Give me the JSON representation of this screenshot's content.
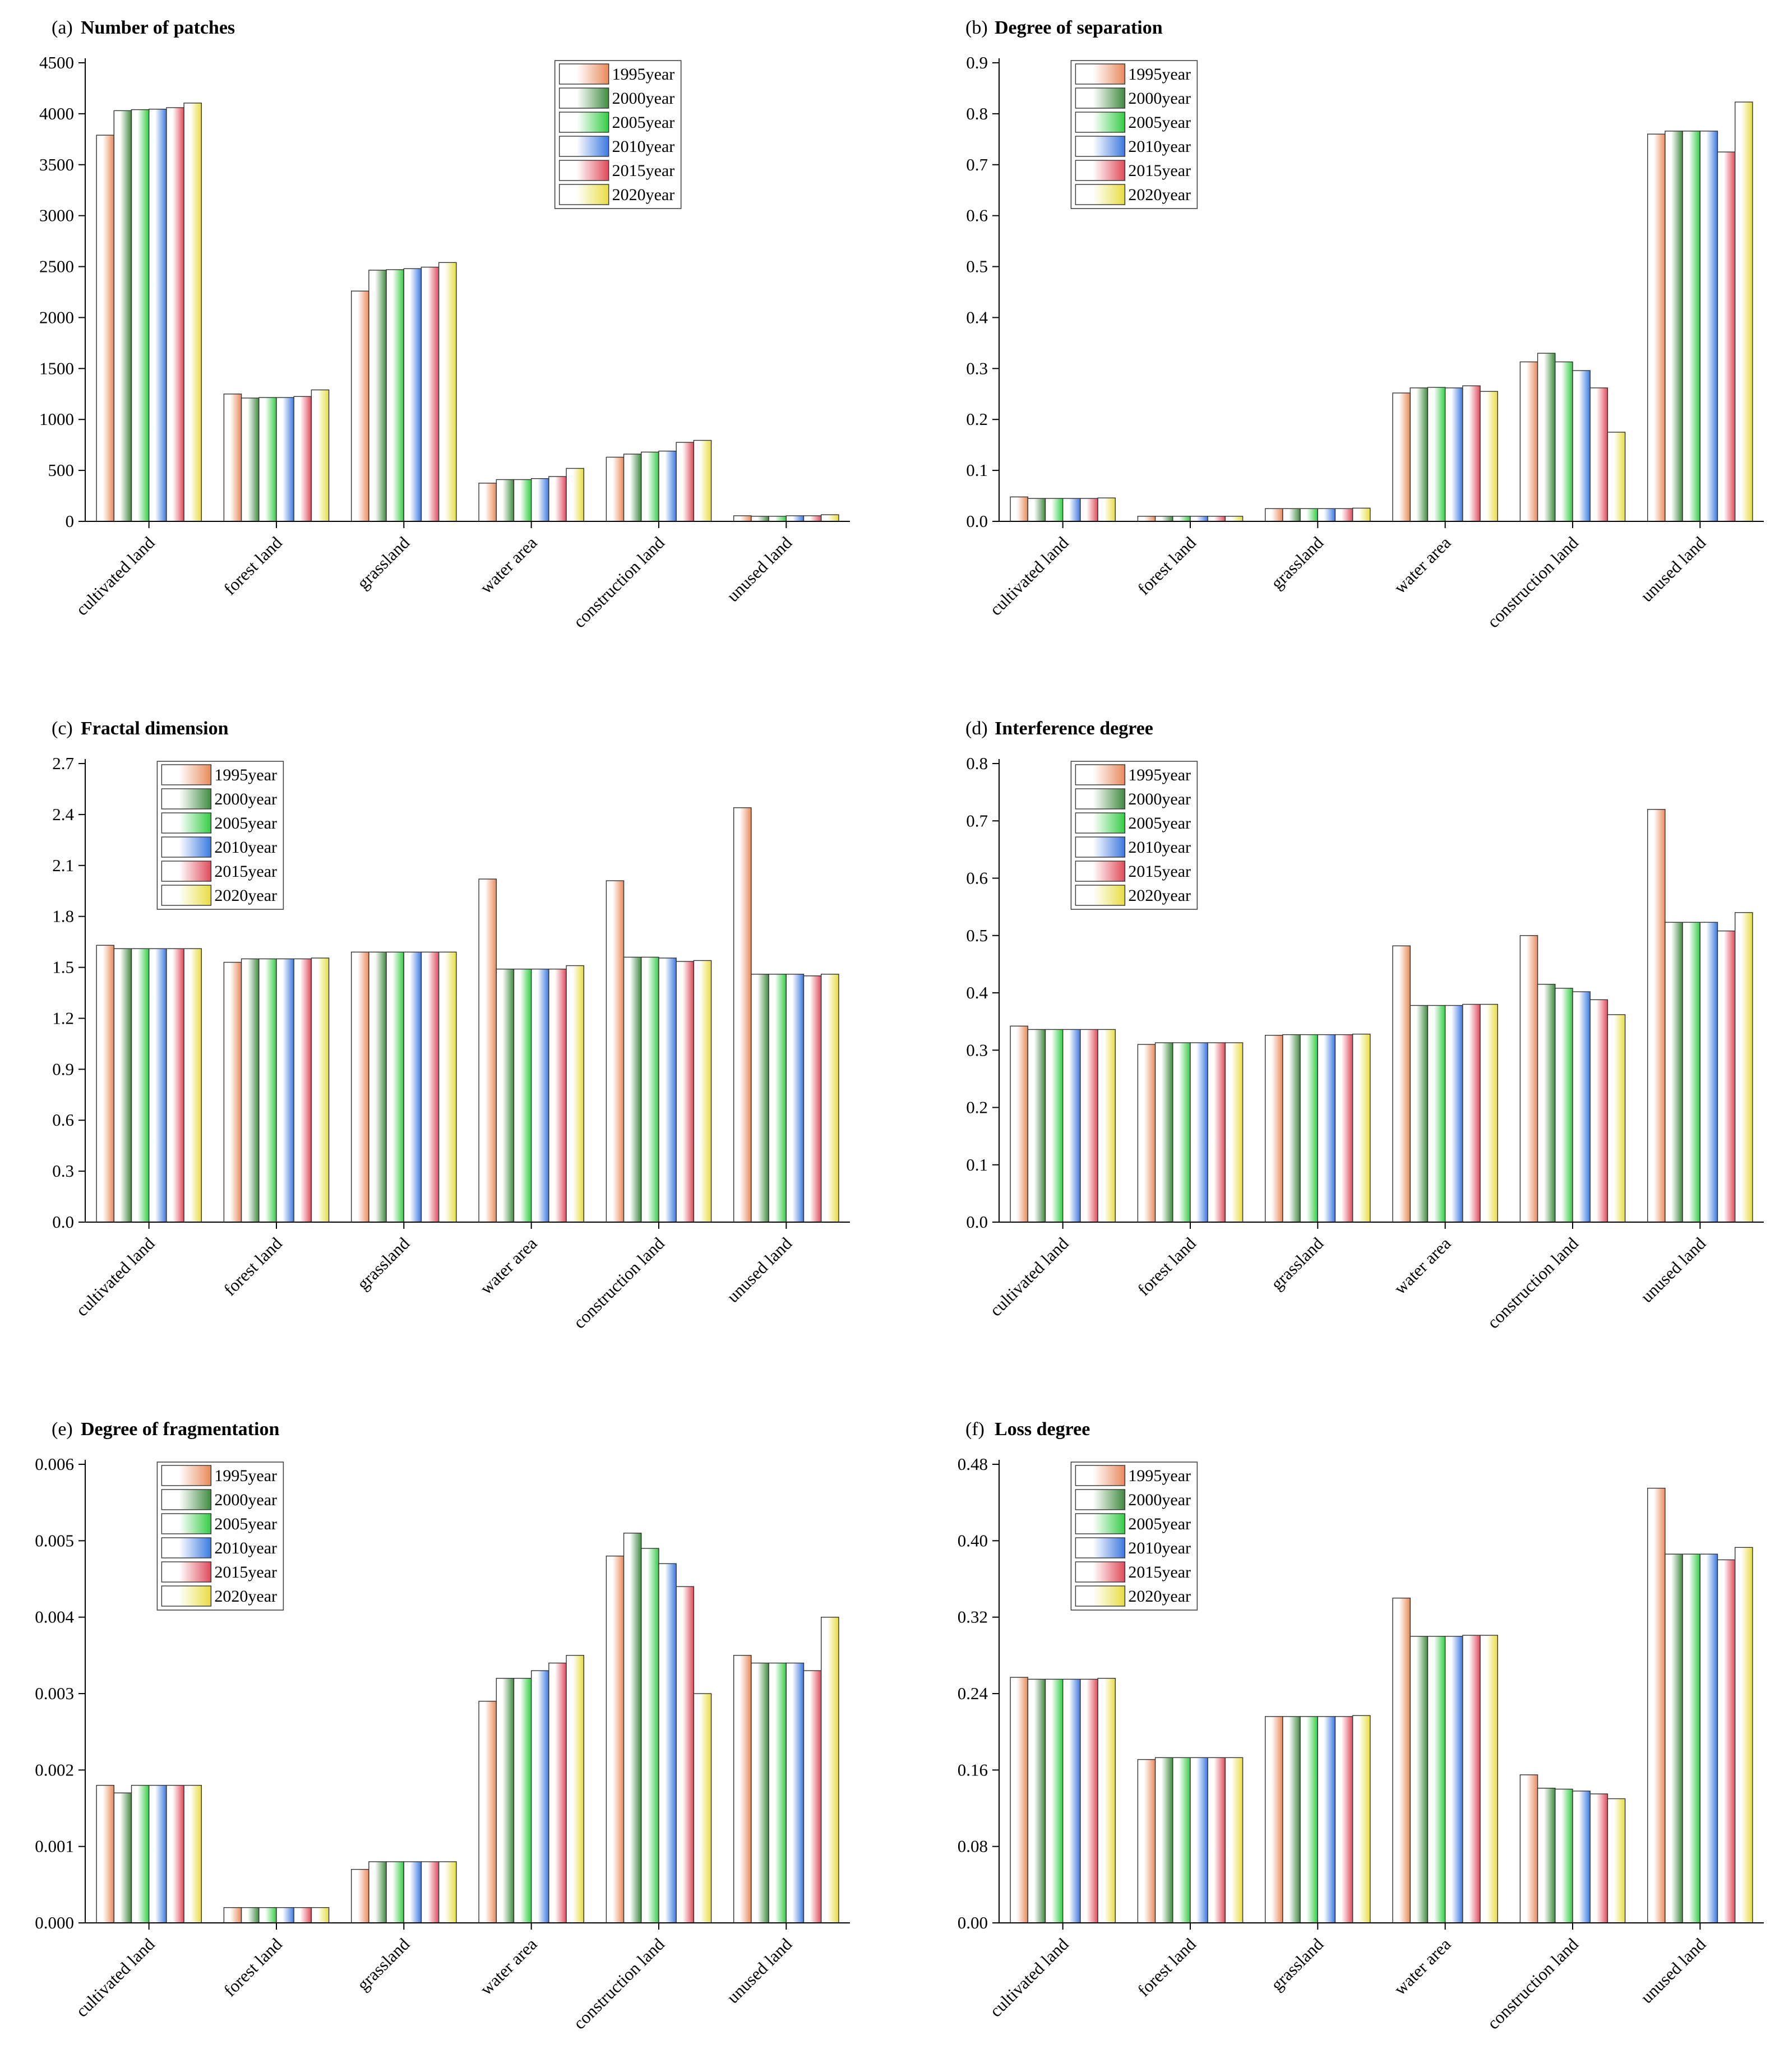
{
  "series_names": [
    "1995year",
    "2000year",
    "2005year",
    "2010year",
    "2015year",
    "2020year"
  ],
  "series_colors": [
    "#e8895a",
    "#3f8a3f",
    "#33cc44",
    "#3a78e0",
    "#e04a5a",
    "#e8dc40"
  ],
  "chart_data": [
    {
      "type": "bar",
      "letter": "(a)",
      "title": "Number of patches",
      "categories": [
        "cultivated land",
        "forest land",
        "grassland",
        "water area",
        "construction land",
        "unused land"
      ],
      "ylim": [
        0,
        4500
      ],
      "ticks": [
        "0",
        "500",
        "1000",
        "1500",
        "2000",
        "2500",
        "3000",
        "3500",
        "4000",
        "4500"
      ],
      "legend": "top-right",
      "series": [
        {
          "name": "1995year",
          "values": [
            3790,
            1250,
            2260,
            375,
            630,
            55
          ]
        },
        {
          "name": "2000year",
          "values": [
            4030,
            1210,
            2465,
            410,
            660,
            50
          ]
        },
        {
          "name": "2005year",
          "values": [
            4040,
            1215,
            2470,
            410,
            680,
            50
          ]
        },
        {
          "name": "2010year",
          "values": [
            4045,
            1215,
            2480,
            420,
            690,
            55
          ]
        },
        {
          "name": "2015year",
          "values": [
            4060,
            1225,
            2495,
            440,
            775,
            55
          ]
        },
        {
          "name": "2020year",
          "values": [
            4105,
            1290,
            2540,
            520,
            795,
            65
          ]
        }
      ]
    },
    {
      "type": "bar",
      "letter": "(b)",
      "title": "Degree of separation",
      "categories": [
        "cultivated land",
        "forest land",
        "grassland",
        "water area",
        "construction land",
        "unused land"
      ],
      "ylim": [
        0,
        0.9
      ],
      "ticks": [
        "0.0",
        "0.1",
        "0.2",
        "0.3",
        "0.4",
        "0.5",
        "0.6",
        "0.7",
        "0.8",
        "0.9"
      ],
      "legend": "top-left",
      "series": [
        {
          "name": "1995year",
          "values": [
            0.048,
            0.01,
            0.025,
            0.252,
            0.313,
            0.76
          ]
        },
        {
          "name": "2000year",
          "values": [
            0.045,
            0.01,
            0.025,
            0.262,
            0.33,
            0.766
          ]
        },
        {
          "name": "2005year",
          "values": [
            0.045,
            0.01,
            0.025,
            0.263,
            0.313,
            0.766
          ]
        },
        {
          "name": "2010year",
          "values": [
            0.045,
            0.01,
            0.025,
            0.262,
            0.296,
            0.766
          ]
        },
        {
          "name": "2015year",
          "values": [
            0.045,
            0.01,
            0.025,
            0.266,
            0.262,
            0.725
          ]
        },
        {
          "name": "2020year",
          "values": [
            0.046,
            0.01,
            0.026,
            0.255,
            0.175,
            0.823
          ]
        }
      ]
    },
    {
      "type": "bar",
      "letter": "(c)",
      "title": "Fractal dimension",
      "categories": [
        "cultivated land",
        "forest land",
        "grassland",
        "water area",
        "construction land",
        "unused land"
      ],
      "ylim": [
        0,
        2.7
      ],
      "ticks": [
        "0.0",
        "0.3",
        "0.6",
        "0.9",
        "1.2",
        "1.5",
        "1.8",
        "2.1",
        "2.4",
        "2.7"
      ],
      "legend": "top-left",
      "series": [
        {
          "name": "1995year",
          "values": [
            1.63,
            1.53,
            1.59,
            2.02,
            2.01,
            2.44
          ]
        },
        {
          "name": "2000year",
          "values": [
            1.61,
            1.55,
            1.59,
            1.49,
            1.56,
            1.46
          ]
        },
        {
          "name": "2005year",
          "values": [
            1.61,
            1.55,
            1.59,
            1.49,
            1.56,
            1.46
          ]
        },
        {
          "name": "2010year",
          "values": [
            1.61,
            1.55,
            1.59,
            1.49,
            1.555,
            1.46
          ]
        },
        {
          "name": "2015year",
          "values": [
            1.61,
            1.55,
            1.59,
            1.49,
            1.535,
            1.45
          ]
        },
        {
          "name": "2020year",
          "values": [
            1.61,
            1.555,
            1.59,
            1.51,
            1.54,
            1.46
          ]
        }
      ]
    },
    {
      "type": "bar",
      "letter": "(d)",
      "title": "Interference degree",
      "categories": [
        "cultivated land",
        "forest land",
        "grassland",
        "water area",
        "construction land",
        "unused land"
      ],
      "ylim": [
        0,
        0.8
      ],
      "ticks": [
        "0.0",
        "0.1",
        "0.2",
        "0.3",
        "0.4",
        "0.5",
        "0.6",
        "0.7",
        "0.8"
      ],
      "legend": "top-left",
      "series": [
        {
          "name": "1995year",
          "values": [
            0.342,
            0.31,
            0.326,
            0.482,
            0.5,
            0.72
          ]
        },
        {
          "name": "2000year",
          "values": [
            0.336,
            0.313,
            0.327,
            0.378,
            0.415,
            0.523
          ]
        },
        {
          "name": "2005year",
          "values": [
            0.336,
            0.313,
            0.327,
            0.378,
            0.408,
            0.523
          ]
        },
        {
          "name": "2010year",
          "values": [
            0.336,
            0.313,
            0.327,
            0.378,
            0.402,
            0.523
          ]
        },
        {
          "name": "2015year",
          "values": [
            0.336,
            0.313,
            0.327,
            0.38,
            0.388,
            0.508
          ]
        },
        {
          "name": "2020year",
          "values": [
            0.336,
            0.313,
            0.328,
            0.38,
            0.362,
            0.54
          ]
        }
      ]
    },
    {
      "type": "bar",
      "letter": "(e)",
      "title": "Degree of fragmentation",
      "categories": [
        "cultivated land",
        "forest land",
        "grassland",
        "water area",
        "construction land",
        "unused land"
      ],
      "ylim": [
        0,
        0.006
      ],
      "ticks": [
        "0.000",
        "0.001",
        "0.002",
        "0.003",
        "0.004",
        "0.005",
        "0.006"
      ],
      "legend": "top-left",
      "series": [
        {
          "name": "1995year",
          "values": [
            0.0018,
            0.0002,
            0.0007,
            0.0029,
            0.0048,
            0.0035
          ]
        },
        {
          "name": "2000year",
          "values": [
            0.0017,
            0.0002,
            0.0008,
            0.0032,
            0.0051,
            0.0034
          ]
        },
        {
          "name": "2005year",
          "values": [
            0.0018,
            0.0002,
            0.0008,
            0.0032,
            0.0049,
            0.0034
          ]
        },
        {
          "name": "2010year",
          "values": [
            0.0018,
            0.0002,
            0.0008,
            0.0033,
            0.0047,
            0.0034
          ]
        },
        {
          "name": "2015year",
          "values": [
            0.0018,
            0.0002,
            0.0008,
            0.0034,
            0.0044,
            0.0033
          ]
        },
        {
          "name": "2020year",
          "values": [
            0.0018,
            0.0002,
            0.0008,
            0.0035,
            0.003,
            0.004
          ]
        }
      ]
    },
    {
      "type": "bar",
      "letter": "(f)",
      "title": "Loss degree",
      "categories": [
        "cultivated land",
        "forest land",
        "grassland",
        "water area",
        "construction land",
        "unused land"
      ],
      "ylim": [
        0,
        0.48
      ],
      "ticks": [
        "0.00",
        "0.08",
        "0.16",
        "0.24",
        "0.32",
        "0.40",
        "0.48"
      ],
      "legend": "top-left",
      "series": [
        {
          "name": "1995year",
          "values": [
            0.257,
            0.171,
            0.216,
            0.34,
            0.155,
            0.455
          ]
        },
        {
          "name": "2000year",
          "values": [
            0.255,
            0.173,
            0.216,
            0.3,
            0.141,
            0.386
          ]
        },
        {
          "name": "2005year",
          "values": [
            0.255,
            0.173,
            0.216,
            0.3,
            0.14,
            0.386
          ]
        },
        {
          "name": "2010year",
          "values": [
            0.255,
            0.173,
            0.216,
            0.3,
            0.138,
            0.386
          ]
        },
        {
          "name": "2015year",
          "values": [
            0.255,
            0.173,
            0.216,
            0.301,
            0.135,
            0.38
          ]
        },
        {
          "name": "2020year",
          "values": [
            0.256,
            0.173,
            0.217,
            0.301,
            0.13,
            0.393
          ]
        }
      ]
    }
  ]
}
